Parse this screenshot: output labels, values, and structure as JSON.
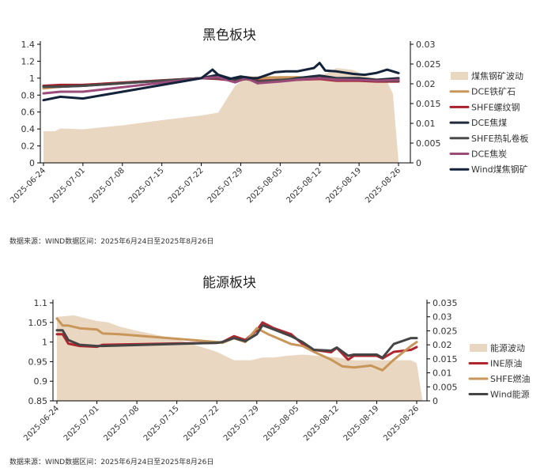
{
  "chart_data": [
    {
      "type": "line",
      "title": "黑色板块",
      "source": "数据来源：WIND数据区间：2025年6月24日至2025年8月26日",
      "x_ticks": [
        "2025-06-24",
        "2025-07-01",
        "2025-07-08",
        "2025-07-15",
        "2025-07-22",
        "2025-07-29",
        "2025-08-05",
        "2025-08-12",
        "2025-08-19",
        "2025-08-26"
      ],
      "y_left": {
        "min": 0,
        "max": 1.4,
        "ticks": [
          "0",
          "0.2",
          "0.4",
          "0.6",
          "0.8",
          "1",
          "1.2",
          "1.4"
        ]
      },
      "y_right": {
        "min": 0,
        "max": 0.03,
        "ticks": [
          "0",
          "0.005",
          "0.01",
          "0.015",
          "0.02",
          "0.025",
          "0.03"
        ]
      },
      "area": {
        "name": "煤焦钢矿波动",
        "color": "#ead7c1",
        "x": [
          "2025-06-24",
          "2025-06-26",
          "2025-06-27",
          "2025-07-01",
          "2025-07-08",
          "2025-07-15",
          "2025-07-22",
          "2025-07-25",
          "2025-07-28",
          "2025-07-30",
          "2025-08-01",
          "2025-08-04",
          "2025-08-06",
          "2025-08-08",
          "2025-08-11",
          "2025-08-13",
          "2025-08-15",
          "2025-08-18",
          "2025-08-20",
          "2025-08-22",
          "2025-08-24",
          "2025-08-25",
          "2025-08-26"
        ],
        "values": [
          0.008,
          0.008,
          0.0087,
          0.0085,
          0.0095,
          0.0108,
          0.012,
          0.0127,
          0.0195,
          0.0215,
          0.022,
          0.022,
          0.0215,
          0.0215,
          0.022,
          0.0225,
          0.024,
          0.0235,
          0.022,
          0.0215,
          0.0205,
          0.0175,
          0.0003
        ]
      },
      "series": [
        {
          "name": "DCE铁矿石",
          "color": "#c9965a",
          "x": [
            "2025-06-24",
            "2025-06-27",
            "2025-07-01",
            "2025-07-22",
            "2025-07-25",
            "2025-07-28",
            "2025-07-30",
            "2025-08-01",
            "2025-08-05",
            "2025-08-08",
            "2025-08-12",
            "2025-08-15",
            "2025-08-19",
            "2025-08-22",
            "2025-08-26"
          ],
          "values": [
            0.88,
            0.9,
            0.92,
            1.0,
            1.0,
            0.99,
            1.01,
            1.0,
            1.01,
            1.01,
            1.0,
            0.99,
            0.98,
            0.98,
            0.97
          ]
        },
        {
          "name": "SHFE螺纹钢",
          "color": "#a8202a",
          "x": [
            "2025-06-24",
            "2025-06-27",
            "2025-07-01",
            "2025-07-22",
            "2025-07-25",
            "2025-07-28",
            "2025-07-30",
            "2025-08-01",
            "2025-08-05",
            "2025-08-08",
            "2025-08-12",
            "2025-08-15",
            "2025-08-19",
            "2025-08-22",
            "2025-08-26"
          ],
          "values": [
            0.91,
            0.92,
            0.92,
            1.0,
            0.99,
            0.97,
            0.99,
            0.97,
            0.98,
            0.98,
            0.99,
            0.97,
            0.97,
            0.96,
            0.96
          ]
        },
        {
          "name": "DCE焦煤",
          "color": "#1f2a3c",
          "x": [
            "2025-06-24",
            "2025-06-27",
            "2025-07-01",
            "2025-07-22",
            "2025-07-25",
            "2025-07-28",
            "2025-07-30",
            "2025-08-01",
            "2025-08-05",
            "2025-08-08",
            "2025-08-12",
            "2025-08-15",
            "2025-08-19",
            "2025-08-22",
            "2025-08-26"
          ],
          "values": [
            0.9,
            0.9,
            0.91,
            1.0,
            1.04,
            0.98,
            1.01,
            0.94,
            0.97,
            1.0,
            1.03,
            1.0,
            1.0,
            0.98,
            1.0
          ]
        },
        {
          "name": "SHFE热轧卷板",
          "color": "#4a4a4a",
          "x": [
            "2025-06-24",
            "2025-06-27",
            "2025-07-01",
            "2025-07-22",
            "2025-07-25",
            "2025-07-28",
            "2025-07-30",
            "2025-08-01",
            "2025-08-05",
            "2025-08-08",
            "2025-08-12",
            "2025-08-15",
            "2025-08-19",
            "2025-08-22",
            "2025-08-26"
          ],
          "values": [
            0.9,
            0.9,
            0.91,
            1.0,
            1.0,
            0.97,
            0.99,
            0.96,
            0.98,
            0.99,
            1.0,
            0.99,
            0.98,
            0.97,
            0.97
          ]
        },
        {
          "name": "DCE焦炭",
          "color": "#9a4b7a",
          "x": [
            "2025-06-24",
            "2025-06-27",
            "2025-07-01",
            "2025-07-22",
            "2025-07-25",
            "2025-07-28",
            "2025-07-30",
            "2025-08-01",
            "2025-08-05",
            "2025-08-08",
            "2025-08-12",
            "2025-08-15",
            "2025-08-19",
            "2025-08-22",
            "2025-08-26"
          ],
          "values": [
            0.82,
            0.84,
            0.84,
            1.0,
            1.01,
            0.95,
            1.0,
            0.94,
            0.96,
            0.98,
            1.0,
            0.98,
            0.98,
            0.97,
            0.98
          ]
        },
        {
          "name": "Wind煤焦钢矿",
          "color": "#14233a",
          "x": [
            "2025-06-24",
            "2025-06-27",
            "2025-07-01",
            "2025-07-22",
            "2025-07-24",
            "2025-07-25",
            "2025-07-27",
            "2025-07-29",
            "2025-07-31",
            "2025-08-01",
            "2025-08-04",
            "2025-08-06",
            "2025-08-08",
            "2025-08-11",
            "2025-08-12",
            "2025-08-13",
            "2025-08-15",
            "2025-08-18",
            "2025-08-20",
            "2025-08-22",
            "2025-08-24",
            "2025-08-26"
          ],
          "values": [
            0.74,
            0.78,
            0.76,
            1.0,
            1.1,
            1.04,
            0.99,
            1.02,
            1.0,
            1.0,
            1.07,
            1.08,
            1.08,
            1.12,
            1.18,
            1.09,
            1.08,
            1.05,
            1.04,
            1.06,
            1.1,
            1.06
          ]
        }
      ]
    },
    {
      "type": "line",
      "title": "能源板块",
      "source": "数据来源：WIND数据区间：2025年6月24日至2025年8月26日",
      "x_ticks": [
        "2025-06-24",
        "2025-07-01",
        "2025-07-08",
        "2025-07-15",
        "2025-07-22",
        "2025-07-29",
        "2025-08-05",
        "2025-08-12",
        "2025-08-19",
        "2025-08-26"
      ],
      "y_left": {
        "min": 0.85,
        "max": 1.1,
        "ticks": [
          "0.85",
          "0.9",
          "0.95",
          "1",
          "1.05",
          "1.1"
        ]
      },
      "y_right": {
        "min": 0,
        "max": 0.035,
        "ticks": [
          "0",
          "0.005",
          "0.01",
          "0.015",
          "0.02",
          "0.025",
          "0.03",
          "0.035"
        ]
      },
      "area": {
        "name": "能源波动",
        "color": "#ead7c1",
        "x": [
          "2025-06-24",
          "2025-06-27",
          "2025-06-29",
          "2025-07-01",
          "2025-07-03",
          "2025-07-05",
          "2025-07-08",
          "2025-07-15",
          "2025-07-22",
          "2025-07-25",
          "2025-07-28",
          "2025-07-30",
          "2025-08-01",
          "2025-08-03",
          "2025-08-06",
          "2025-08-09",
          "2025-08-12",
          "2025-08-15",
          "2025-08-19",
          "2025-08-22",
          "2025-08-25",
          "2025-08-26",
          "2025-08-27"
        ],
        "values": [
          0.03,
          0.0305,
          0.0295,
          0.0285,
          0.028,
          0.0265,
          0.025,
          0.022,
          0.0175,
          0.0145,
          0.0145,
          0.0155,
          0.0155,
          0.016,
          0.0165,
          0.016,
          0.0155,
          0.0145,
          0.0145,
          0.0145,
          0.0145,
          0.0135,
          0.0003
        ]
      },
      "series": [
        {
          "name": "INE原油",
          "color": "#b0262e",
          "x": [
            "2025-06-24",
            "2025-06-25",
            "2025-06-26",
            "2025-06-28",
            "2025-07-01",
            "2025-07-02",
            "2025-07-22",
            "2025-07-23",
            "2025-07-25",
            "2025-07-27",
            "2025-07-29",
            "2025-07-30",
            "2025-08-01",
            "2025-08-04",
            "2025-08-06",
            "2025-08-08",
            "2025-08-11",
            "2025-08-12",
            "2025-08-14",
            "2025-08-15",
            "2025-08-19",
            "2025-08-20",
            "2025-08-22",
            "2025-08-25",
            "2025-08-26"
          ],
          "values": [
            1.02,
            1.02,
            0.996,
            0.99,
            0.988,
            0.993,
            0.998,
            1.0,
            1.015,
            1.005,
            1.03,
            1.05,
            1.035,
            1.02,
            0.995,
            0.98,
            0.974,
            0.985,
            0.955,
            0.965,
            0.965,
            0.958,
            0.975,
            0.98,
            0.987
          ]
        },
        {
          "name": "SHFE燃油",
          "color": "#c9965a",
          "x": [
            "2025-06-24",
            "2025-06-25",
            "2025-06-26",
            "2025-06-28",
            "2025-07-01",
            "2025-07-02",
            "2025-07-05",
            "2025-07-22",
            "2025-07-23",
            "2025-07-25",
            "2025-07-27",
            "2025-07-29",
            "2025-07-31",
            "2025-08-04",
            "2025-08-06",
            "2025-08-08",
            "2025-08-11",
            "2025-08-13",
            "2025-08-15",
            "2025-08-18",
            "2025-08-20",
            "2025-08-22",
            "2025-08-25",
            "2025-08-26"
          ],
          "values": [
            1.06,
            1.042,
            1.042,
            1.035,
            1.032,
            1.022,
            1.02,
            1.0,
            0.998,
            1.01,
            1.0,
            1.035,
            1.02,
            0.995,
            0.99,
            0.975,
            0.955,
            0.938,
            0.935,
            0.94,
            0.928,
            0.955,
            0.99,
            1.0
          ]
        },
        {
          "name": "Wind能源",
          "color": "#454545",
          "x": [
            "2025-06-24",
            "2025-06-25",
            "2025-06-26",
            "2025-06-28",
            "2025-07-01",
            "2025-07-02",
            "2025-07-22",
            "2025-07-23",
            "2025-07-25",
            "2025-07-27",
            "2025-07-29",
            "2025-07-30",
            "2025-08-01",
            "2025-08-04",
            "2025-08-06",
            "2025-08-08",
            "2025-08-11",
            "2025-08-12",
            "2025-08-14",
            "2025-08-15",
            "2025-08-19",
            "2025-08-20",
            "2025-08-22",
            "2025-08-25",
            "2025-08-26"
          ],
          "values": [
            1.03,
            1.03,
            1.005,
            0.993,
            0.99,
            0.99,
            0.998,
            1.0,
            1.01,
            1.002,
            1.02,
            1.043,
            1.032,
            1.015,
            1.0,
            0.98,
            0.978,
            0.986,
            0.965,
            0.968,
            0.968,
            0.96,
            0.995,
            1.01,
            1.01
          ]
        }
      ]
    }
  ]
}
